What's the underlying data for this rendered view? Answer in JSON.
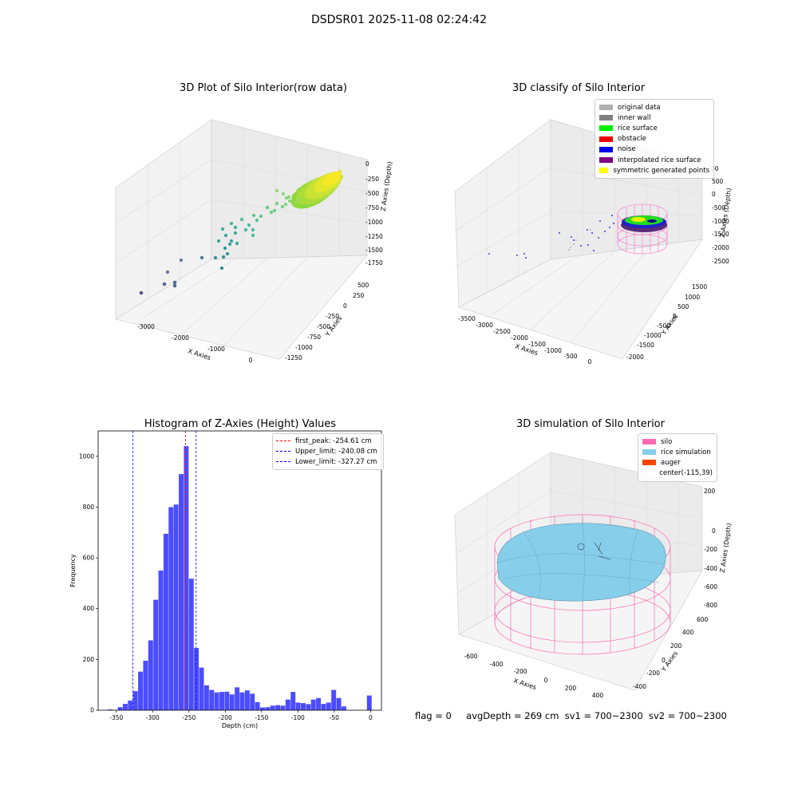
{
  "suptitle": "DSDSR01 2025-11-08 02:24:42",
  "panels": {
    "raw": {
      "title": "3D Plot of Silo Interior(row data)",
      "xlabel": "X Axies",
      "ylabel": "Y Axies",
      "zlabel": "Z Axies (Depth)",
      "xticks": [
        "-3000",
        "-2000",
        "-1000",
        "0"
      ],
      "yticks": [
        "500",
        "250",
        "0",
        "-250",
        "-500",
        "-750",
        "-1000",
        "-1250"
      ],
      "zticks": [
        "0",
        "-250",
        "-500",
        "-750",
        "-1000",
        "-1250",
        "-1500",
        "-1750"
      ]
    },
    "classify": {
      "title": "3D classify of Silo Interior",
      "xlabel": "X Axies",
      "ylabel": "Y Axies",
      "zlabel": "Z Axies (Depth)",
      "xticks": [
        "-3500",
        "-3000",
        "-2500",
        "-2000",
        "-1500",
        "-1000",
        "-500",
        "0"
      ],
      "yticks": [
        "1500",
        "1000",
        "500",
        "0",
        "-500",
        "-1000",
        "-1500",
        "-2000"
      ],
      "zticks": [
        "500",
        "0",
        "-500",
        "-1000",
        "-1500",
        "-2000",
        "-2500"
      ],
      "legend": [
        {
          "label": "original data",
          "color": "#b0b0b0"
        },
        {
          "label": "inner wall",
          "color": "#808080"
        },
        {
          "label": "rice surface",
          "color": "#00ee00"
        },
        {
          "label": "obstacle",
          "color": "#ee0000"
        },
        {
          "label": "noise",
          "color": "#0000ee"
        },
        {
          "label": "interpolated rice surface",
          "color": "#800080"
        },
        {
          "label": "symmetric generated points",
          "color": "#ffff00"
        }
      ],
      "zticks_partial": "00"
    },
    "simulation": {
      "title": "3D simulation of Silo Interior",
      "xlabel": "X Axies",
      "ylabel": "Y Axies",
      "zlabel": "Z Axies (Depth)",
      "xticks": [
        "-600",
        "-400",
        "-200",
        "0",
        "200",
        "400"
      ],
      "yticks": [
        "600",
        "400",
        "200",
        "0",
        "-200",
        "-400"
      ],
      "zticks": [
        "200",
        "0",
        "-200",
        "-400",
        "-600",
        "-800"
      ],
      "legend": [
        {
          "label": "silo",
          "color": "#ff69b4"
        },
        {
          "label": "rice simulation",
          "color": "#87ceeb"
        },
        {
          "label": "auger",
          "color": "#ff4500"
        },
        {
          "label": "center(-115,39)",
          "color": ""
        }
      ]
    }
  },
  "footer": {
    "flag": "flag = 0",
    "avg": "avgDepth = 269 cm",
    "sv1": "sv1 = 700~2300",
    "sv2": "sv2 = 700~2300"
  },
  "chart_data": [
    {
      "type": "bar",
      "title": "Histogram of Z-Axies (Height) Values",
      "xlabel": "Depth (cm)",
      "ylabel": "Frequency",
      "xlim": [
        -375,
        15
      ],
      "ylim": [
        0,
        1100
      ],
      "bar_color": "#0000ff",
      "xticks": [
        -350,
        -300,
        -250,
        -200,
        -150,
        -100,
        -50,
        0
      ],
      "yticks": [
        0,
        200,
        400,
        600,
        800,
        1000
      ],
      "bins": [
        {
          "x0": -362,
          "x1": -355,
          "v": 3
        },
        {
          "x0": -355,
          "x1": -348,
          "v": 1
        },
        {
          "x0": -348,
          "x1": -341,
          "v": 12
        },
        {
          "x0": -341,
          "x1": -334,
          "v": 25
        },
        {
          "x0": -334,
          "x1": -327,
          "v": 38
        },
        {
          "x0": -327,
          "x1": -320,
          "v": 75
        },
        {
          "x0": -320,
          "x1": -313,
          "v": 152
        },
        {
          "x0": -313,
          "x1": -306,
          "v": 195
        },
        {
          "x0": -306,
          "x1": -299,
          "v": 275
        },
        {
          "x0": -299,
          "x1": -292,
          "v": 435
        },
        {
          "x0": -292,
          "x1": -285,
          "v": 550
        },
        {
          "x0": -285,
          "x1": -278,
          "v": 695
        },
        {
          "x0": -278,
          "x1": -271,
          "v": 800
        },
        {
          "x0": -271,
          "x1": -264,
          "v": 810
        },
        {
          "x0": -264,
          "x1": -257,
          "v": 930
        },
        {
          "x0": -257,
          "x1": -250,
          "v": 1040
        },
        {
          "x0": -250,
          "x1": -243,
          "v": 518
        },
        {
          "x0": -243,
          "x1": -236,
          "v": 245
        },
        {
          "x0": -236,
          "x1": -229,
          "v": 168
        },
        {
          "x0": -229,
          "x1": -222,
          "v": 98
        },
        {
          "x0": -222,
          "x1": -215,
          "v": 80
        },
        {
          "x0": -215,
          "x1": -208,
          "v": 70
        },
        {
          "x0": -208,
          "x1": -201,
          "v": 72
        },
        {
          "x0": -201,
          "x1": -194,
          "v": 73
        },
        {
          "x0": -194,
          "x1": -187,
          "v": 62
        },
        {
          "x0": -187,
          "x1": -180,
          "v": 90
        },
        {
          "x0": -180,
          "x1": -173,
          "v": 70
        },
        {
          "x0": -173,
          "x1": -166,
          "v": 78
        },
        {
          "x0": -166,
          "x1": -159,
          "v": 65
        },
        {
          "x0": -159,
          "x1": -152,
          "v": 32
        },
        {
          "x0": -152,
          "x1": -145,
          "v": 11
        },
        {
          "x0": -145,
          "x1": -138,
          "v": 12
        },
        {
          "x0": -138,
          "x1": -131,
          "v": 18
        },
        {
          "x0": -131,
          "x1": -124,
          "v": 20
        },
        {
          "x0": -124,
          "x1": -117,
          "v": 18
        },
        {
          "x0": -117,
          "x1": -110,
          "v": 42
        },
        {
          "x0": -110,
          "x1": -103,
          "v": 72
        },
        {
          "x0": -103,
          "x1": -96,
          "v": 30
        },
        {
          "x0": -96,
          "x1": -89,
          "v": 28
        },
        {
          "x0": -89,
          "x1": -82,
          "v": 24
        },
        {
          "x0": -82,
          "x1": -75,
          "v": 42
        },
        {
          "x0": -75,
          "x1": -68,
          "v": 48
        },
        {
          "x0": -68,
          "x1": -61,
          "v": 25
        },
        {
          "x0": -61,
          "x1": -54,
          "v": 30
        },
        {
          "x0": -54,
          "x1": -47,
          "v": 80
        },
        {
          "x0": -47,
          "x1": -40,
          "v": 48
        },
        {
          "x0": -40,
          "x1": -33,
          "v": 15
        },
        {
          "x0": -5,
          "x1": 2,
          "v": 58
        }
      ],
      "vlines": [
        {
          "label": "first_peak: -254.61 cm",
          "x": -254.61,
          "color": "#ff0000"
        },
        {
          "label": "Upper_limit: -240.08 cm",
          "x": -240.08,
          "color": "#0000ff"
        },
        {
          "label": "Lower_limit: -327.27 cm",
          "x": -327.27,
          "color": "#0000ff"
        }
      ]
    }
  ]
}
